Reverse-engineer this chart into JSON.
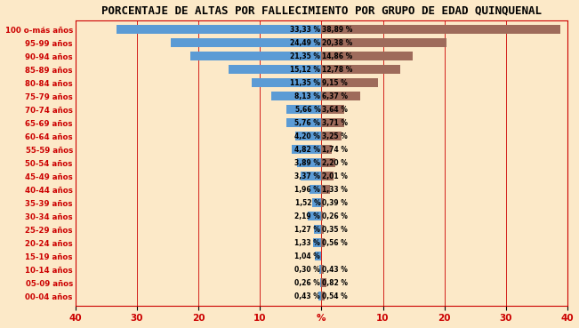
{
  "title": "PORCENTAJE DE ALTAS POR FALLECIMIENTO POR GRUPO DE EDAD QUINQUENAL",
  "categories": [
    "100 o­más años",
    "95-99 años",
    "90-94 años",
    "85-89 años",
    "80-84 años",
    "75-79 años",
    "70-74 años",
    "65-69 años",
    "60-64 años",
    "55-59 años",
    "50-54 años",
    "45-49 años",
    "40-44 años",
    "35-39 años",
    "30-34 años",
    "25-29 años",
    "20-24 años",
    "15-19 años",
    "10-14 años",
    "05-09 años",
    "00-04 años"
  ],
  "left_values": [
    33.33,
    24.49,
    21.35,
    15.12,
    11.35,
    8.13,
    5.66,
    5.76,
    4.2,
    4.82,
    3.89,
    3.37,
    1.96,
    1.52,
    2.19,
    1.27,
    1.33,
    1.04,
    0.3,
    0.26,
    0.43
  ],
  "right_values": [
    38.89,
    20.38,
    14.86,
    12.78,
    9.15,
    6.37,
    3.64,
    3.71,
    3.25,
    1.74,
    2.2,
    2.01,
    1.33,
    0.39,
    0.26,
    0.35,
    0.56,
    0.0,
    0.43,
    0.82,
    0.54
  ],
  "left_labels": [
    "33,33 %",
    "24,49 %",
    "21,35 %",
    "15,12 %",
    "11,35 %",
    "8,13 %",
    "5,66 %",
    "5,76 %",
    "4,20 %",
    "4,82 %",
    "3,89 %",
    "3,37 %",
    "1,96 %",
    "1,52 %",
    "2,19 %",
    "1,27 %",
    "1,33 %",
    "1,04 %",
    "0,30 %",
    "0,26 %",
    "0,43 %"
  ],
  "right_labels": [
    "38,89 %",
    "20,38 %",
    "14,86 %",
    "12,78 %",
    "9,15 %",
    "6,37 %",
    "3,64 %",
    "3,71 %",
    "3,25 %",
    "1,74 %",
    "2,20 %",
    "2,01 %",
    "1,33 %",
    "0,39 %",
    "0,26 %",
    "0,35 %",
    "0,56 %",
    "",
    "0,43 %",
    "0,82 %",
    "0,54 %"
  ],
  "left_color": "#5b9bd5",
  "right_color": "#9e6b5b",
  "ylabel_color": "#cc0000",
  "background_color": "#fce9c8",
  "grid_color": "#cc0000",
  "xlim": 40,
  "title_fontsize": 9,
  "bar_height": 0.7
}
